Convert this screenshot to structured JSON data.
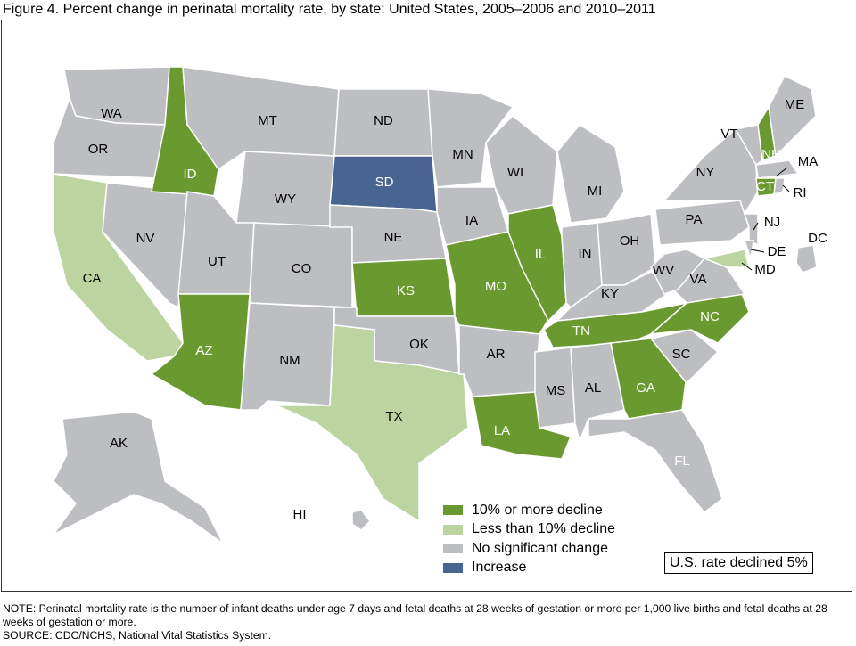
{
  "title": "Figure 4. Percent change in perinatal mortality rate, by state: United States, 2005–2006 and 2010–2011",
  "colors": {
    "ten_or_more_decline": "#6a9a2f",
    "less_than_ten_decline": "#bcd4a0",
    "no_change": "#bdbec2",
    "increase": "#4a6491"
  },
  "legend": [
    "10% or more decline",
    "Less than 10% decline",
    "No significant change",
    "Increase"
  ],
  "us_rate": "U.S. rate declined 5%",
  "states": {
    "WA": "WA",
    "OR": "OR",
    "CA": "CA",
    "NV": "NV",
    "ID": "ID",
    "MT": "MT",
    "WY": "WY",
    "UT": "UT",
    "CO": "CO",
    "AZ": "AZ",
    "NM": "NM",
    "ND": "ND",
    "SD": "SD",
    "NE": "NE",
    "KS": "KS",
    "OK": "OK",
    "TX": "TX",
    "MN": "MN",
    "IA": "IA",
    "MO": "MO",
    "AR": "AR",
    "LA": "LA",
    "WI": "WI",
    "IL": "IL",
    "MI": "MI",
    "IN": "IN",
    "OH": "OH",
    "KY": "KY",
    "TN": "TN",
    "MS": "MS",
    "AL": "AL",
    "GA": "GA",
    "FL": "FL",
    "SC": "SC",
    "NC": "NC",
    "VA": "VA",
    "WV": "WV",
    "PA": "PA",
    "NY": "NY",
    "VT": "VT",
    "NH": "NH",
    "ME": "ME",
    "MA": "MA",
    "CT": "CT",
    "RI": "RI",
    "NJ": "NJ",
    "DE": "DE",
    "MD": "MD",
    "DC": "DC",
    "AK": "AK",
    "HI": "HI"
  },
  "categories": {
    "ten_or_more_decline": [
      "ID",
      "AZ",
      "KS",
      "MO",
      "IL",
      "TN",
      "NC",
      "GA",
      "LA",
      "NH",
      "CT"
    ],
    "less_than_ten_decline": [
      "CA",
      "TX",
      "MD"
    ],
    "increase": [
      "SD"
    ]
  },
  "note": "NOTE: Perinatal mortality rate is the number of infant deaths under age 7 days and fetal deaths at 28 weeks of gestation or more per 1,000 live births and fetal deaths at 28 weeks of gestation or more.",
  "source": "SOURCE: CDC/NCHS, National Vital Statistics System."
}
